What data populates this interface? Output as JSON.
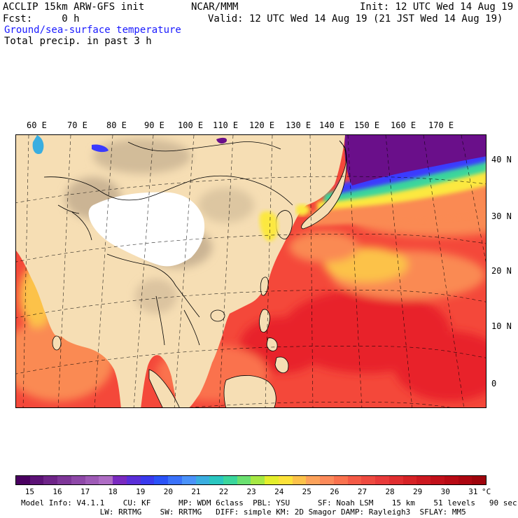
{
  "header": {
    "model_title": "ACCLIP 15km ARW-GFS init",
    "org": "NCAR/MMM",
    "init": "Init: 12 UTC Wed 14 Aug 19",
    "fcst": "Fcst:     0 h",
    "valid": "Valid: 12 UTC Wed 14 Aug 19 (21 JST Wed 14 Aug 19)",
    "field1": "Ground/sea-surface temperature",
    "field2": "Total precip. in past 3 h"
  },
  "map": {
    "lon_labels": [
      "60 E",
      "70 E",
      "80 E",
      "90 E",
      "100 E",
      "110 E",
      "120 E",
      "130 E",
      "140 E",
      "150 E",
      "160 E",
      "170 E"
    ],
    "lat_labels": [
      "40 N",
      "30 N",
      "20 N",
      "10 N",
      "0"
    ],
    "colors": {
      "land": "#f6deb4",
      "plateau": "#ffffff",
      "mountain": "#b8a386",
      "sea_warm": "#f4483a",
      "sea_hot": "#e8242a",
      "sea_mild": "#fa8a52",
      "sea_cool": "#fce840",
      "sea_cold": "#3a3aff",
      "sea_frigid": "#6a0f8a"
    }
  },
  "colorbar": {
    "colors": [
      "#4a0060",
      "#5c1276",
      "#6e2488",
      "#7e3698",
      "#8e48a8",
      "#9e5ab6",
      "#ae6cc4",
      "#7a2ac0",
      "#5a2ed8",
      "#3a3aee",
      "#2a52f8",
      "#3a72fa",
      "#4a92fa",
      "#3aaee0",
      "#2ac6c0",
      "#3ad69c",
      "#6ae070",
      "#a6e844",
      "#e4ee2c",
      "#fce23a",
      "#fcc24a",
      "#fca25a",
      "#fc8a5a",
      "#fa724e",
      "#f45a46",
      "#ee4a40",
      "#e83a3a",
      "#e02e30",
      "#d62226",
      "#cc1820",
      "#c2101a",
      "#b80a14",
      "#ac0610",
      "#9e040c"
    ],
    "labels": [
      "15",
      "16",
      "17",
      "18",
      "19",
      "20",
      "21",
      "22",
      "23",
      "24",
      "25",
      "26",
      "27",
      "28",
      "29",
      "30",
      "31"
    ],
    "unit": "°C"
  },
  "footer": {
    "line1": "Model Info: V4.1.1    CU: KF      MP: WDM 6class  PBL: YSU      SF: Noah LSM    15 km    51 levels   90 sec",
    "line2": "                 LW: RRTMG    SW: RRTMG   DIFF: simple KM: 2D Smagor DAMP: Rayleigh3  SFLAY: MM5"
  }
}
